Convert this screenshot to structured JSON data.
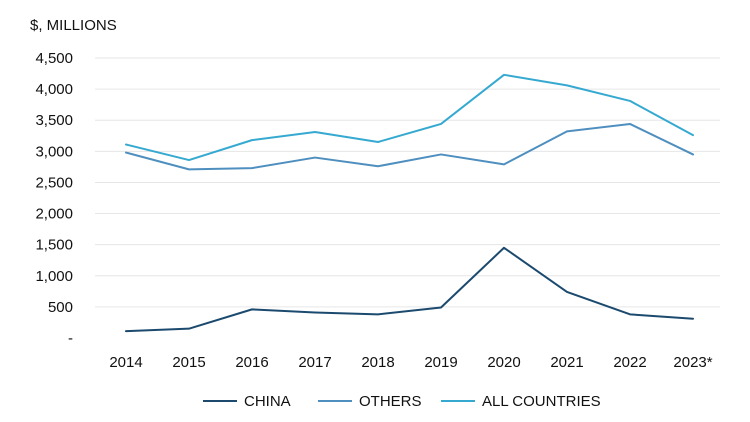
{
  "chart_data": {
    "type": "line",
    "ylabel": "$, MILLIONS",
    "categories": [
      "2014",
      "2015",
      "2016",
      "2017",
      "2018",
      "2019",
      "2020",
      "2021",
      "2022",
      "2023*"
    ],
    "ylim": [
      0,
      4500
    ],
    "yticks": [
      0,
      500,
      1000,
      1500,
      2000,
      2500,
      3000,
      3500,
      4000,
      4500
    ],
    "ytick_labels": [
      "-",
      "500",
      "1,000",
      "1,500",
      "2,000",
      "2,500",
      "3,000",
      "3,500",
      "4,000",
      "4,500"
    ],
    "grid": true,
    "legend_position": "bottom",
    "series": [
      {
        "name": "CHINA",
        "color": "#1b4a6e",
        "values": [
          110,
          150,
          460,
          410,
          380,
          490,
          1450,
          740,
          380,
          310
        ]
      },
      {
        "name": "OTHERS",
        "color": "#4e8fbf",
        "values": [
          2980,
          2710,
          2730,
          2900,
          2760,
          2950,
          2790,
          3320,
          3440,
          2950
        ]
      },
      {
        "name": "ALL COUNTRIES",
        "color": "#36a9d1",
        "values": [
          3110,
          2860,
          3180,
          3310,
          3150,
          3440,
          4230,
          4060,
          3810,
          3260
        ]
      }
    ]
  }
}
